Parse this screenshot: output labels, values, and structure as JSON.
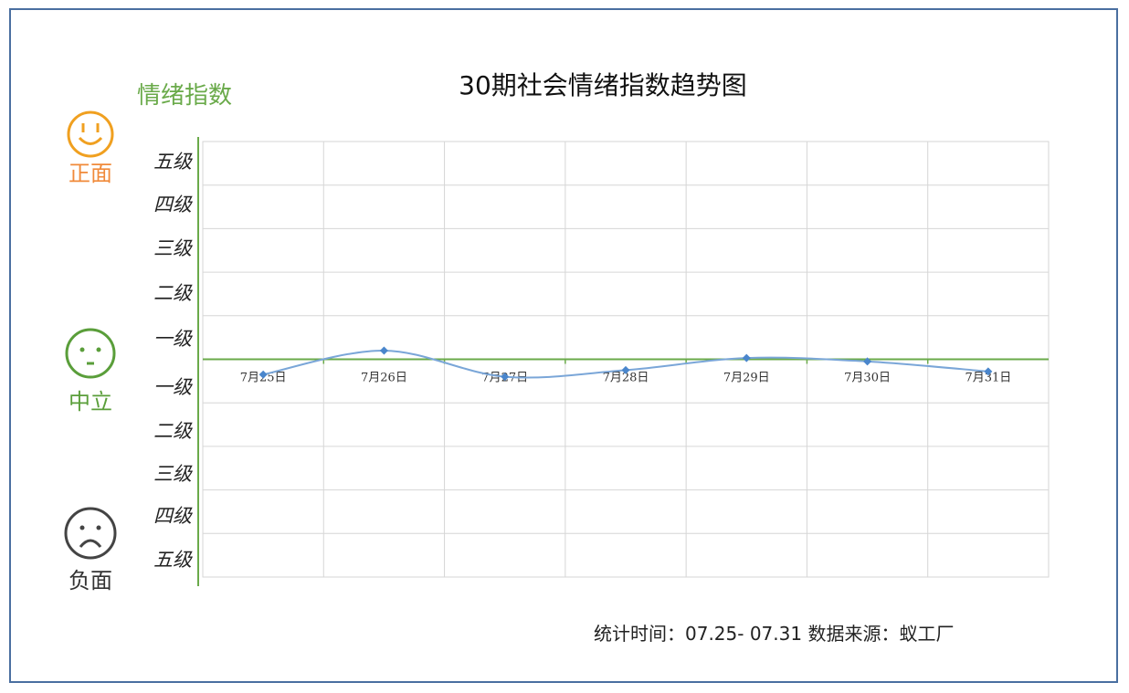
{
  "title": "30期社会情绪指数趋势图",
  "y_title": "情绪指数",
  "faces": [
    {
      "label": "正面",
      "color": "#f0a020",
      "icon": "smile-face-icon"
    },
    {
      "label": "中立",
      "color": "#5a9e3a",
      "icon": "neutral-face-icon"
    },
    {
      "label": "负面",
      "color": "#444444",
      "icon": "sad-face-icon"
    }
  ],
  "footer": "统计时间：07.25- 07.31 数据来源：蚁工厂",
  "colors": {
    "line": "#7aa6d8",
    "marker": "#4a86cc",
    "axis": "#6aaa4a",
    "grid": "#d6d6d6"
  },
  "chart_data": {
    "type": "line",
    "title": "30期社会情绪指数趋势图",
    "ylabel": "情绪指数",
    "ylim": [
      -5,
      5
    ],
    "y_tick_labels": [
      "五级",
      "四级",
      "三级",
      "二级",
      "一级",
      "一级",
      "二级",
      "三级",
      "四级",
      "五级"
    ],
    "categories": [
      "7月25日",
      "7月26日",
      "7月27日",
      "7月28日",
      "7月29日",
      "7月30日",
      "7月31日"
    ],
    "values": [
      -0.35,
      0.2,
      -0.4,
      -0.25,
      0.03,
      -0.05,
      -0.28
    ],
    "grid": true,
    "smooth": true
  }
}
